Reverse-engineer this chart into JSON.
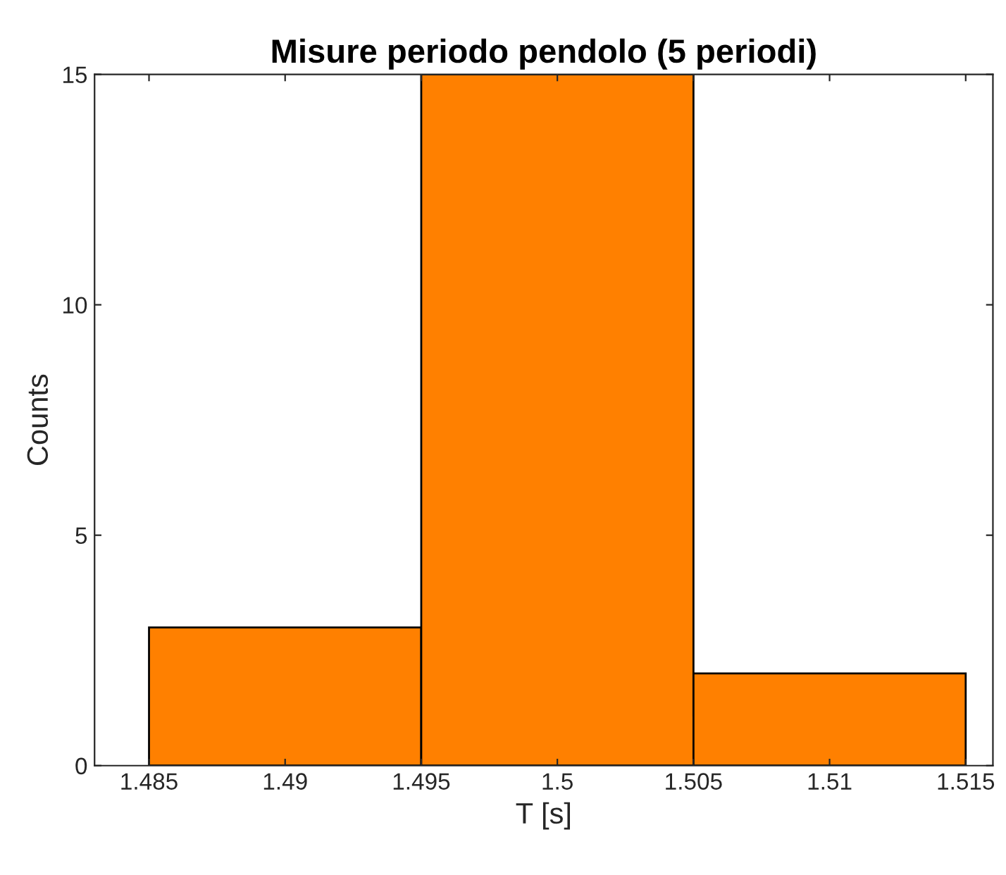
{
  "chart_data": {
    "type": "histogram",
    "title": "Misure periodo pendolo (5 periodi)",
    "xlabel": "T [s]",
    "ylabel": "Counts",
    "bins": [
      1.485,
      1.495,
      1.505,
      1.515
    ],
    "values": [
      3,
      15,
      2
    ],
    "color": "#ff8000",
    "xlim": [
      1.483,
      1.516
    ],
    "xticks": [
      1.485,
      1.49,
      1.495,
      1.5,
      1.505,
      1.51,
      1.515
    ],
    "ylim": [
      0,
      15
    ],
    "yticks": [
      0,
      5,
      10,
      15
    ],
    "grid": false
  }
}
